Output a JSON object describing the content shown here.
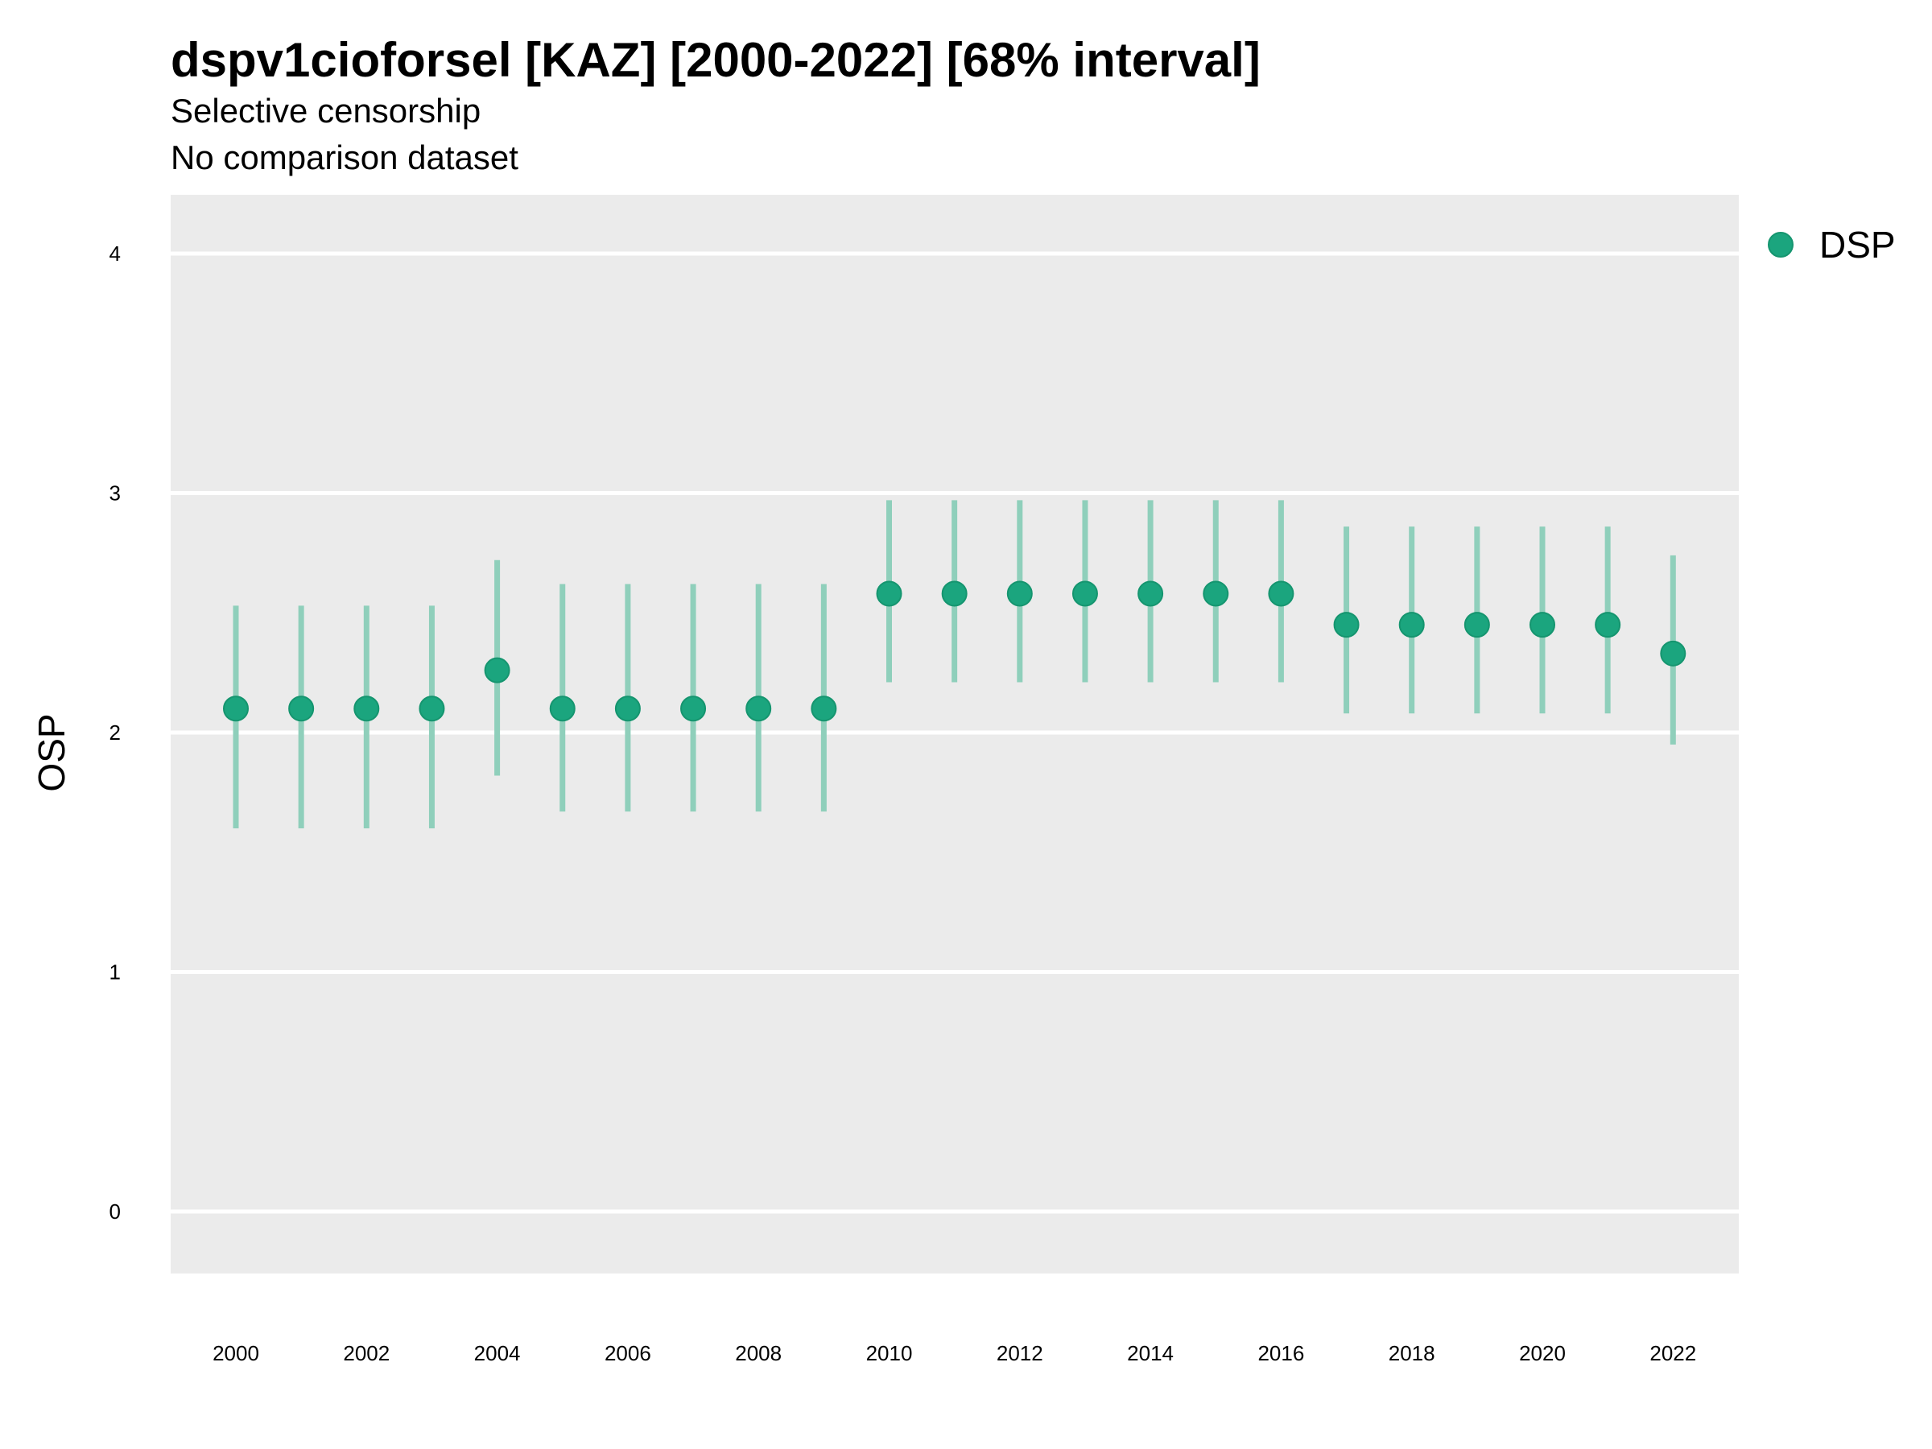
{
  "chart_data": {
    "type": "scatter",
    "title": "dspv1cioforsel [KAZ] [2000-2022] [68% interval]",
    "subtitle": "Selective censorship",
    "subtitle2": "No comparison dataset",
    "xlabel": "",
    "ylabel": "OSP",
    "xlim": [
      1999,
      2023
    ],
    "ylim": [
      -0.25,
      4.25
    ],
    "x_ticks": [
      2000,
      2002,
      2004,
      2006,
      2008,
      2010,
      2012,
      2014,
      2016,
      2018,
      2020,
      2022
    ],
    "y_ticks": [
      0,
      1,
      2,
      3,
      4
    ],
    "grid": true,
    "legend_position": "right-top",
    "series": [
      {
        "name": "DSP",
        "color": "#1ba57e",
        "interval_color": "#8fcfbb",
        "x": [
          2000,
          2001,
          2002,
          2003,
          2004,
          2005,
          2006,
          2007,
          2008,
          2009,
          2010,
          2011,
          2012,
          2013,
          2014,
          2015,
          2016,
          2017,
          2018,
          2019,
          2020,
          2021,
          2022
        ],
        "y": [
          2.1,
          2.1,
          2.1,
          2.1,
          2.26,
          2.1,
          2.1,
          2.1,
          2.1,
          2.1,
          2.58,
          2.58,
          2.58,
          2.58,
          2.58,
          2.58,
          2.58,
          2.45,
          2.45,
          2.45,
          2.45,
          2.45,
          2.33
        ],
        "lower": [
          1.6,
          1.6,
          1.6,
          1.6,
          1.82,
          1.67,
          1.67,
          1.67,
          1.67,
          1.67,
          2.21,
          2.21,
          2.21,
          2.21,
          2.21,
          2.21,
          2.21,
          2.08,
          2.08,
          2.08,
          2.08,
          2.08,
          1.95
        ],
        "upper": [
          2.53,
          2.53,
          2.53,
          2.53,
          2.72,
          2.62,
          2.62,
          2.62,
          2.62,
          2.62,
          2.97,
          2.97,
          2.97,
          2.97,
          2.97,
          2.97,
          2.97,
          2.86,
          2.86,
          2.86,
          2.86,
          2.86,
          2.74
        ]
      }
    ]
  }
}
